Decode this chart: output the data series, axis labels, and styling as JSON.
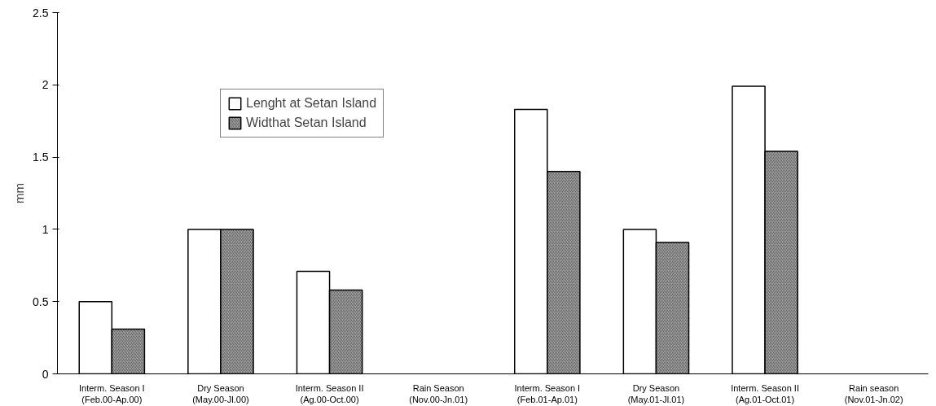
{
  "chart_data": {
    "type": "bar",
    "ylabel": "mm",
    "categories": [
      "Interm. Season I\n(Feb.00-Ap.00)",
      "Dry Season\n(May.00-Jl.00)",
      "Interm. Season II\n(Ag.00-Oct.00)",
      "Rain Season\n(Nov.00-Jn.01)",
      "Interm. Season I\n(Feb.01-Ap.01)",
      "Dry Season\n(May.01-Jl.01)",
      "Interm. Season II\n(Ag.01-Oct.01)",
      "Rain season\n(Nov.01-Jn.02)"
    ],
    "series": [
      {
        "name": "Lenght at Setan Island",
        "color": "#ffffff",
        "values": [
          0.5,
          1.0,
          0.71,
          null,
          1.83,
          1.0,
          1.99,
          null
        ]
      },
      {
        "name": "Widthat Setan Island",
        "color": "#a6a6a6",
        "values": [
          0.31,
          1.0,
          0.58,
          null,
          1.4,
          0.91,
          1.54,
          null
        ]
      }
    ],
    "ylim": [
      0,
      2.5
    ],
    "yticks": [
      0,
      0.5,
      1,
      1.5,
      2,
      2.5
    ],
    "grid": false,
    "legend": "top left"
  }
}
